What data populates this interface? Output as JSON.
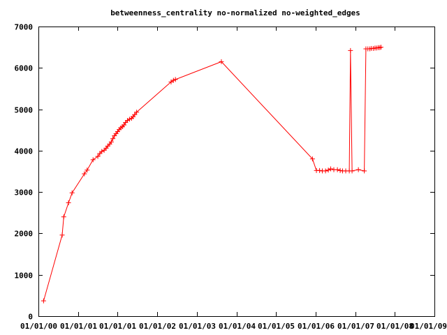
{
  "chart_data": {
    "type": "line",
    "title": "betweenness_centrality no-normalized no-weighted_edges",
    "xlabel": "",
    "ylabel": "",
    "x_tick_labels": [
      "01/01/00",
      "01/01/01",
      "01/01/01",
      "01/01/02",
      "01/01/03",
      "01/01/04",
      "01/01/05",
      "01/01/06",
      "01/01/07",
      "01/01/08",
      "01/01/09"
    ],
    "y_tick_labels": [
      "0",
      "1000",
      "2000",
      "3000",
      "4000",
      "5000",
      "6000",
      "7000"
    ],
    "ylim": [
      0,
      7000
    ],
    "grid": false,
    "legend": "none",
    "series_color": "#ff0000",
    "marker": "plus",
    "x_tick_values": [
      0,
      1,
      2,
      3,
      4,
      5,
      6,
      7,
      8,
      9,
      10
    ],
    "series": [
      {
        "points": [
          [
            0.13,
            370
          ],
          [
            0.6,
            1960
          ],
          [
            0.64,
            2400
          ],
          [
            0.76,
            2740
          ],
          [
            0.85,
            2980
          ],
          [
            1.16,
            3440
          ],
          [
            1.23,
            3530
          ],
          [
            1.38,
            3780
          ],
          [
            1.5,
            3860
          ],
          [
            1.55,
            3930
          ],
          [
            1.6,
            3980
          ],
          [
            1.66,
            4010
          ],
          [
            1.71,
            4060
          ],
          [
            1.75,
            4110
          ],
          [
            1.8,
            4160
          ],
          [
            1.84,
            4210
          ],
          [
            1.88,
            4290
          ],
          [
            1.92,
            4360
          ],
          [
            1.96,
            4410
          ],
          [
            2.0,
            4460
          ],
          [
            2.04,
            4510
          ],
          [
            2.08,
            4550
          ],
          [
            2.12,
            4580
          ],
          [
            2.16,
            4620
          ],
          [
            2.2,
            4680
          ],
          [
            2.25,
            4730
          ],
          [
            2.3,
            4760
          ],
          [
            2.35,
            4780
          ],
          [
            2.39,
            4820
          ],
          [
            2.43,
            4870
          ],
          [
            2.48,
            4930
          ],
          [
            3.35,
            5660
          ],
          [
            3.41,
            5700
          ],
          [
            3.46,
            5720
          ],
          [
            4.62,
            6150
          ],
          [
            6.92,
            3800
          ],
          [
            7.02,
            3520
          ],
          [
            7.1,
            3520
          ],
          [
            7.17,
            3510
          ],
          [
            7.25,
            3510
          ],
          [
            7.32,
            3530
          ],
          [
            7.38,
            3560
          ],
          [
            7.46,
            3540
          ],
          [
            7.55,
            3540
          ],
          [
            7.62,
            3520
          ],
          [
            7.68,
            3510
          ],
          [
            7.76,
            3510
          ],
          [
            7.85,
            3510
          ],
          [
            7.88,
            6420
          ],
          [
            7.92,
            3510
          ],
          [
            8.08,
            3540
          ],
          [
            8.23,
            3510
          ],
          [
            8.27,
            6460
          ],
          [
            8.32,
            6460
          ],
          [
            8.37,
            6460
          ],
          [
            8.41,
            6470
          ],
          [
            8.46,
            6470
          ],
          [
            8.5,
            6480
          ],
          [
            8.54,
            6480
          ],
          [
            8.58,
            6490
          ],
          [
            8.62,
            6490
          ],
          [
            8.65,
            6500
          ]
        ]
      }
    ]
  }
}
